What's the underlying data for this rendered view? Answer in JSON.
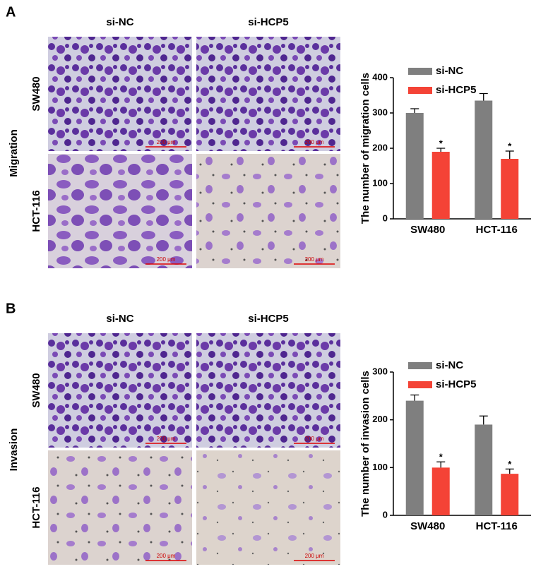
{
  "panels": [
    {
      "label": "A",
      "assay": "Migration",
      "columns": [
        "si-NC",
        "si-HCP5"
      ],
      "rows": [
        "SW480",
        "HCT-116"
      ],
      "scale_bar": "200 μm"
    },
    {
      "label": "B",
      "assay": "Invasion",
      "columns": [
        "si-NC",
        "si-HCP5"
      ],
      "rows": [
        "SW480",
        "HCT-116"
      ],
      "scale_bar": "200 μm"
    }
  ],
  "chart_data": [
    {
      "type": "bar",
      "y_label": "The number of migration cells",
      "categories": [
        "SW480",
        "HCT-116"
      ],
      "series": [
        {
          "name": "si-NC",
          "color": "#7f7f7f",
          "values": [
            300,
            335
          ],
          "errors": [
            12,
            20
          ]
        },
        {
          "name": "si-HCP5",
          "color": "#f44336",
          "values": [
            190,
            170
          ],
          "errors": [
            10,
            22
          ],
          "significance": [
            "*",
            "*"
          ]
        }
      ],
      "ylim": [
        0,
        400
      ],
      "yticks": [
        0,
        100,
        200,
        300,
        400
      ],
      "legend": "top-left"
    },
    {
      "type": "bar",
      "y_label": "The number of invasion cells",
      "categories": [
        "SW480",
        "HCT-116"
      ],
      "series": [
        {
          "name": "si-NC",
          "color": "#7f7f7f",
          "values": [
            240,
            190
          ],
          "errors": [
            12,
            18
          ]
        },
        {
          "name": "si-HCP5",
          "color": "#f44336",
          "values": [
            100,
            87
          ],
          "errors": [
            12,
            10
          ],
          "significance": [
            "*",
            "*"
          ]
        }
      ],
      "ylim": [
        0,
        300
      ],
      "yticks": [
        0,
        100,
        200,
        300
      ],
      "legend": "top-left"
    }
  ]
}
